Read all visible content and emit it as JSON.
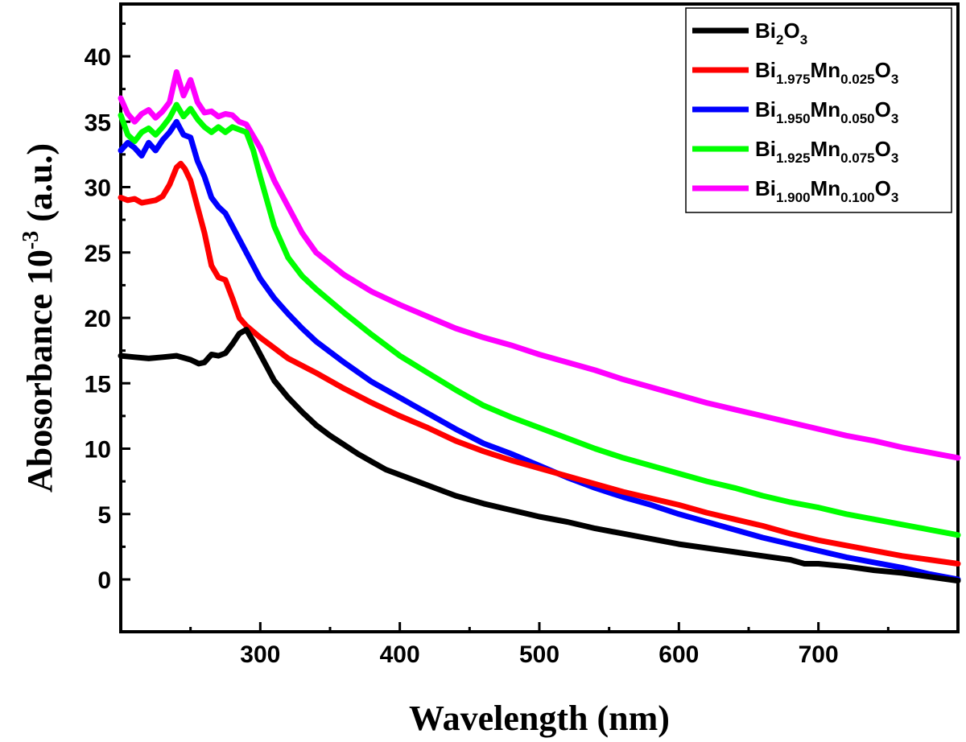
{
  "chart_data": {
    "type": "line",
    "xlabel": "Wavelength (nm)",
    "ylabel": "Abosorbance 10",
    "ylabel_sup": "-3",
    "ylabel_unit": " (a.u.)",
    "xlim": [
      200,
      800
    ],
    "ylim": [
      -4,
      44
    ],
    "xticks": [
      300,
      400,
      500,
      600,
      700
    ],
    "yticks": [
      0,
      5,
      10,
      15,
      20,
      25,
      30,
      35,
      40
    ],
    "legend_position": "top-right",
    "series": [
      {
        "name": "Bi2O3",
        "legend": [
          {
            "t": "Bi",
            "s": false
          },
          {
            "t": "2",
            "s": true
          },
          {
            "t": "O",
            "s": false
          },
          {
            "t": "3",
            "s": true
          }
        ],
        "color": "#000000",
        "points": [
          [
            200,
            17.1
          ],
          [
            210,
            17.0
          ],
          [
            220,
            16.9
          ],
          [
            230,
            17.0
          ],
          [
            240,
            17.1
          ],
          [
            250,
            16.8
          ],
          [
            256,
            16.5
          ],
          [
            260,
            16.6
          ],
          [
            265,
            17.2
          ],
          [
            270,
            17.1
          ],
          [
            275,
            17.3
          ],
          [
            280,
            18.0
          ],
          [
            285,
            18.8
          ],
          [
            290,
            19.1
          ],
          [
            295,
            18.2
          ],
          [
            300,
            17.2
          ],
          [
            310,
            15.2
          ],
          [
            320,
            13.9
          ],
          [
            330,
            12.8
          ],
          [
            340,
            11.8
          ],
          [
            350,
            11.0
          ],
          [
            360,
            10.3
          ],
          [
            370,
            9.6
          ],
          [
            380,
            9.0
          ],
          [
            390,
            8.4
          ],
          [
            400,
            8.0
          ],
          [
            420,
            7.2
          ],
          [
            440,
            6.4
          ],
          [
            460,
            5.8
          ],
          [
            480,
            5.3
          ],
          [
            500,
            4.8
          ],
          [
            520,
            4.4
          ],
          [
            540,
            3.9
          ],
          [
            560,
            3.5
          ],
          [
            580,
            3.1
          ],
          [
            600,
            2.7
          ],
          [
            620,
            2.4
          ],
          [
            640,
            2.1
          ],
          [
            660,
            1.8
          ],
          [
            680,
            1.5
          ],
          [
            690,
            1.2
          ],
          [
            700,
            1.2
          ],
          [
            720,
            1.0
          ],
          [
            740,
            0.7
          ],
          [
            760,
            0.5
          ],
          [
            780,
            0.2
          ],
          [
            800,
            -0.1
          ]
        ]
      },
      {
        "name": "Bi1.975Mn0.025O3",
        "legend": [
          {
            "t": "Bi",
            "s": false
          },
          {
            "t": "1.975",
            "s": true
          },
          {
            "t": "Mn",
            "s": false
          },
          {
            "t": "0.025",
            "s": true
          },
          {
            "t": "O",
            "s": false
          },
          {
            "t": "3",
            "s": true
          }
        ],
        "color": "#ff0000",
        "points": [
          [
            200,
            29.2
          ],
          [
            205,
            29.0
          ],
          [
            210,
            29.1
          ],
          [
            215,
            28.8
          ],
          [
            220,
            28.9
          ],
          [
            225,
            29.0
          ],
          [
            230,
            29.3
          ],
          [
            235,
            30.2
          ],
          [
            240,
            31.5
          ],
          [
            243,
            31.8
          ],
          [
            246,
            31.4
          ],
          [
            250,
            30.5
          ],
          [
            255,
            28.5
          ],
          [
            260,
            26.5
          ],
          [
            265,
            24.0
          ],
          [
            270,
            23.1
          ],
          [
            275,
            22.9
          ],
          [
            280,
            21.5
          ],
          [
            285,
            20.0
          ],
          [
            290,
            19.4
          ],
          [
            300,
            18.5
          ],
          [
            310,
            17.7
          ],
          [
            320,
            16.9
          ],
          [
            340,
            15.8
          ],
          [
            360,
            14.6
          ],
          [
            380,
            13.5
          ],
          [
            400,
            12.5
          ],
          [
            420,
            11.6
          ],
          [
            440,
            10.6
          ],
          [
            460,
            9.8
          ],
          [
            480,
            9.1
          ],
          [
            500,
            8.5
          ],
          [
            520,
            7.9
          ],
          [
            540,
            7.3
          ],
          [
            560,
            6.7
          ],
          [
            580,
            6.2
          ],
          [
            600,
            5.7
          ],
          [
            620,
            5.1
          ],
          [
            640,
            4.6
          ],
          [
            660,
            4.1
          ],
          [
            680,
            3.5
          ],
          [
            700,
            3.0
          ],
          [
            720,
            2.6
          ],
          [
            740,
            2.2
          ],
          [
            760,
            1.8
          ],
          [
            780,
            1.5
          ],
          [
            800,
            1.2
          ]
        ]
      },
      {
        "name": "Bi1.950Mn0.050O3",
        "legend": [
          {
            "t": "Bi",
            "s": false
          },
          {
            "t": "1.950",
            "s": true
          },
          {
            "t": "Mn",
            "s": false
          },
          {
            "t": "0.050",
            "s": true
          },
          {
            "t": "O",
            "s": false
          },
          {
            "t": "3",
            "s": true
          }
        ],
        "color": "#0000ff",
        "points": [
          [
            200,
            32.8
          ],
          [
            205,
            33.4
          ],
          [
            210,
            33.0
          ],
          [
            215,
            32.4
          ],
          [
            220,
            33.4
          ],
          [
            225,
            32.8
          ],
          [
            230,
            33.6
          ],
          [
            235,
            34.2
          ],
          [
            240,
            35.0
          ],
          [
            245,
            34.0
          ],
          [
            250,
            33.8
          ],
          [
            255,
            32.0
          ],
          [
            260,
            30.8
          ],
          [
            265,
            29.2
          ],
          [
            270,
            28.5
          ],
          [
            275,
            28.0
          ],
          [
            280,
            27.0
          ],
          [
            290,
            25.0
          ],
          [
            300,
            23.0
          ],
          [
            310,
            21.5
          ],
          [
            320,
            20.3
          ],
          [
            330,
            19.2
          ],
          [
            340,
            18.2
          ],
          [
            360,
            16.6
          ],
          [
            380,
            15.1
          ],
          [
            400,
            13.9
          ],
          [
            420,
            12.7
          ],
          [
            440,
            11.5
          ],
          [
            460,
            10.4
          ],
          [
            480,
            9.6
          ],
          [
            500,
            8.7
          ],
          [
            520,
            7.8
          ],
          [
            540,
            7.0
          ],
          [
            560,
            6.3
          ],
          [
            580,
            5.7
          ],
          [
            600,
            5.0
          ],
          [
            620,
            4.4
          ],
          [
            640,
            3.8
          ],
          [
            660,
            3.2
          ],
          [
            680,
            2.7
          ],
          [
            700,
            2.2
          ],
          [
            720,
            1.7
          ],
          [
            740,
            1.3
          ],
          [
            760,
            0.9
          ],
          [
            780,
            0.4
          ],
          [
            800,
            0.0
          ]
        ]
      },
      {
        "name": "Bi1.925Mn0.075O3",
        "legend": [
          {
            "t": "Bi",
            "s": false
          },
          {
            "t": "1.925",
            "s": true
          },
          {
            "t": "Mn",
            "s": false
          },
          {
            "t": "0.075",
            "s": true
          },
          {
            "t": "O",
            "s": false
          },
          {
            "t": "3",
            "s": true
          }
        ],
        "color": "#00ff00",
        "points": [
          [
            200,
            35.5
          ],
          [
            205,
            34.0
          ],
          [
            210,
            33.5
          ],
          [
            215,
            34.2
          ],
          [
            220,
            34.5
          ],
          [
            225,
            34.0
          ],
          [
            230,
            34.6
          ],
          [
            235,
            35.3
          ],
          [
            240,
            36.3
          ],
          [
            245,
            35.4
          ],
          [
            250,
            36.0
          ],
          [
            255,
            35.2
          ],
          [
            260,
            34.6
          ],
          [
            265,
            34.2
          ],
          [
            270,
            34.6
          ],
          [
            275,
            34.2
          ],
          [
            280,
            34.6
          ],
          [
            290,
            34.2
          ],
          [
            295,
            32.8
          ],
          [
            300,
            30.8
          ],
          [
            310,
            27.0
          ],
          [
            320,
            24.6
          ],
          [
            330,
            23.2
          ],
          [
            340,
            22.2
          ],
          [
            360,
            20.4
          ],
          [
            380,
            18.7
          ],
          [
            400,
            17.1
          ],
          [
            420,
            15.8
          ],
          [
            440,
            14.5
          ],
          [
            460,
            13.3
          ],
          [
            480,
            12.4
          ],
          [
            500,
            11.6
          ],
          [
            520,
            10.8
          ],
          [
            540,
            10.0
          ],
          [
            560,
            9.3
          ],
          [
            580,
            8.7
          ],
          [
            600,
            8.1
          ],
          [
            620,
            7.5
          ],
          [
            640,
            7.0
          ],
          [
            660,
            6.4
          ],
          [
            680,
            5.9
          ],
          [
            700,
            5.5
          ],
          [
            720,
            5.0
          ],
          [
            740,
            4.6
          ],
          [
            760,
            4.2
          ],
          [
            780,
            3.8
          ],
          [
            800,
            3.4
          ]
        ]
      },
      {
        "name": "Bi1.900Mn0.100O3",
        "legend": [
          {
            "t": "Bi",
            "s": false
          },
          {
            "t": "1.900",
            "s": true
          },
          {
            "t": "Mn",
            "s": false
          },
          {
            "t": "0.100",
            "s": true
          },
          {
            "t": "O",
            "s": false
          },
          {
            "t": "3",
            "s": true
          }
        ],
        "color": "#ff00ff",
        "points": [
          [
            200,
            36.8
          ],
          [
            205,
            35.6
          ],
          [
            210,
            35.0
          ],
          [
            215,
            35.6
          ],
          [
            220,
            35.9
          ],
          [
            225,
            35.3
          ],
          [
            230,
            35.8
          ],
          [
            235,
            36.5
          ],
          [
            240,
            38.8
          ],
          [
            245,
            37.0
          ],
          [
            250,
            38.2
          ],
          [
            255,
            36.5
          ],
          [
            260,
            35.7
          ],
          [
            265,
            35.8
          ],
          [
            270,
            35.4
          ],
          [
            275,
            35.6
          ],
          [
            280,
            35.5
          ],
          [
            285,
            35.0
          ],
          [
            290,
            34.8
          ],
          [
            300,
            33.0
          ],
          [
            310,
            30.5
          ],
          [
            320,
            28.5
          ],
          [
            330,
            26.5
          ],
          [
            340,
            25.0
          ],
          [
            360,
            23.3
          ],
          [
            380,
            22.0
          ],
          [
            400,
            21.0
          ],
          [
            420,
            20.1
          ],
          [
            440,
            19.2
          ],
          [
            460,
            18.5
          ],
          [
            480,
            17.9
          ],
          [
            500,
            17.2
          ],
          [
            520,
            16.6
          ],
          [
            540,
            16.0
          ],
          [
            560,
            15.3
          ],
          [
            580,
            14.7
          ],
          [
            600,
            14.1
          ],
          [
            620,
            13.5
          ],
          [
            640,
            13.0
          ],
          [
            660,
            12.5
          ],
          [
            680,
            12.0
          ],
          [
            700,
            11.5
          ],
          [
            720,
            11.0
          ],
          [
            740,
            10.6
          ],
          [
            760,
            10.1
          ],
          [
            780,
            9.7
          ],
          [
            800,
            9.3
          ]
        ]
      }
    ]
  }
}
